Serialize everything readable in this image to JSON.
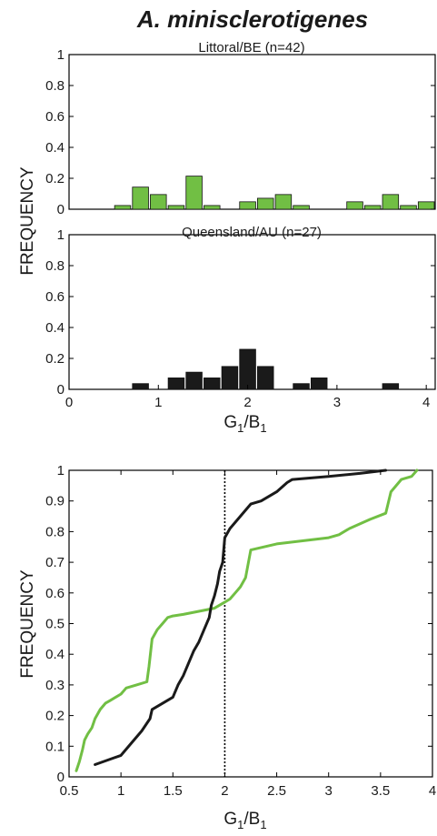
{
  "figure_title": "A. minisclerotigenes",
  "colors": {
    "green": "#71bf44",
    "black": "#1a1a1a",
    "bar_edge": "#111111"
  },
  "chart_data": [
    {
      "type": "bar",
      "title": "Littoral/BE (n=42)",
      "ylabel": "FREQUENCY",
      "xlim": [
        0,
        4.1
      ],
      "ylim": [
        0,
        1
      ],
      "yticks": [
        "0",
        "0.2",
        "0.4",
        "0.6",
        "0.8",
        "1"
      ],
      "bin_width": 0.2,
      "color": "green",
      "x": [
        0.6,
        0.8,
        1.0,
        1.2,
        1.4,
        1.6,
        2.0,
        2.2,
        2.4,
        2.6,
        3.2,
        3.4,
        3.6,
        3.8,
        4.0
      ],
      "values": [
        0.024,
        0.143,
        0.095,
        0.024,
        0.214,
        0.024,
        0.048,
        0.071,
        0.095,
        0.024,
        0.048,
        0.024,
        0.095,
        0.024,
        0.048
      ]
    },
    {
      "type": "bar",
      "title": "Queensland/AU (n=27)",
      "xlabel": "G1/B1",
      "xlim": [
        0,
        4.1
      ],
      "ylim": [
        0,
        1
      ],
      "xticks": [
        "0",
        "1",
        "2",
        "3",
        "4"
      ],
      "yticks": [
        "0",
        "0.2",
        "0.4",
        "0.6",
        "0.8",
        "1"
      ],
      "bin_width": 0.2,
      "color": "black",
      "x": [
        0.8,
        1.2,
        1.4,
        1.6,
        1.8,
        2.0,
        2.2,
        2.6,
        2.8,
        3.6
      ],
      "values": [
        0.037,
        0.074,
        0.111,
        0.074,
        0.148,
        0.259,
        0.148,
        0.037,
        0.074,
        0.037
      ]
    },
    {
      "type": "line",
      "xlabel": "G1/B1",
      "ylabel": "FREQUENCY",
      "xlim": [
        0.5,
        4
      ],
      "ylim": [
        0,
        1
      ],
      "xticks": [
        "0.5",
        "1",
        "1.5",
        "2",
        "2.5",
        "3",
        "3.5",
        "4"
      ],
      "yticks": [
        "0",
        "0.1",
        "0.2",
        "0.3",
        "0.4",
        "0.5",
        "0.6",
        "0.7",
        "0.8",
        "0.9",
        "1"
      ],
      "vline_x": 2,
      "series": [
        {
          "color": "green",
          "x": [
            0.57,
            0.6,
            0.63,
            0.65,
            0.68,
            0.72,
            0.75,
            0.8,
            0.85,
            0.9,
            1.0,
            1.05,
            1.15,
            1.25,
            1.27,
            1.3,
            1.35,
            1.4,
            1.45,
            1.5,
            1.6,
            1.75,
            1.9,
            2.0,
            2.05,
            2.1,
            2.15,
            2.2,
            2.25,
            2.5,
            2.75,
            3.0,
            3.1,
            3.2,
            3.4,
            3.55,
            3.6,
            3.65,
            3.7,
            3.8,
            3.85
          ],
          "y": [
            0.02,
            0.05,
            0.09,
            0.12,
            0.14,
            0.16,
            0.19,
            0.22,
            0.24,
            0.25,
            0.27,
            0.29,
            0.3,
            0.31,
            0.36,
            0.45,
            0.48,
            0.5,
            0.52,
            0.525,
            0.53,
            0.54,
            0.55,
            0.57,
            0.58,
            0.6,
            0.62,
            0.65,
            0.74,
            0.76,
            0.77,
            0.78,
            0.79,
            0.81,
            0.84,
            0.86,
            0.93,
            0.95,
            0.97,
            0.98,
            1.0
          ]
        },
        {
          "color": "black",
          "x": [
            0.75,
            1.0,
            1.1,
            1.2,
            1.28,
            1.3,
            1.5,
            1.55,
            1.6,
            1.65,
            1.7,
            1.75,
            1.8,
            1.85,
            1.87,
            1.9,
            1.93,
            1.95,
            1.98,
            2.0,
            2.05,
            2.15,
            2.25,
            2.35,
            2.5,
            2.6,
            2.65,
            3.0,
            3.3,
            3.55
          ],
          "y": [
            0.04,
            0.07,
            0.11,
            0.15,
            0.19,
            0.22,
            0.26,
            0.3,
            0.33,
            0.37,
            0.41,
            0.44,
            0.48,
            0.52,
            0.56,
            0.59,
            0.63,
            0.67,
            0.7,
            0.78,
            0.81,
            0.85,
            0.89,
            0.9,
            0.93,
            0.96,
            0.97,
            0.98,
            0.99,
            1.0
          ]
        }
      ]
    }
  ]
}
